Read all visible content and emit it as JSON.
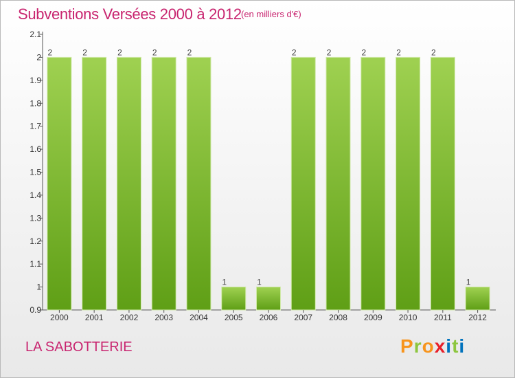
{
  "title": "Subventions Versées 2000 à 2012",
  "subtitle": "(en milliers d'€)",
  "commune": "LA SABOTTERIE",
  "logo": {
    "letters": [
      "P",
      "r",
      "o",
      "x",
      "i",
      "t",
      "i"
    ],
    "colors": [
      "#f7941d",
      "#8dc63f",
      "#f7941d",
      "#e8202a",
      "#0072bc",
      "#8dc63f",
      "#0072bc"
    ]
  },
  "colors": {
    "bar_top": "#9fd151",
    "bar_bottom": "#5f9f16",
    "accent": "#c8246f"
  },
  "chart_data": {
    "type": "bar",
    "title": "Subventions Versées 2000 à 2012",
    "categories": [
      "2000",
      "2001",
      "2002",
      "2003",
      "2004",
      "2005",
      "2006",
      "2007",
      "2008",
      "2009",
      "2010",
      "2011",
      "2012"
    ],
    "values": [
      2,
      2,
      2,
      2,
      2,
      1,
      1,
      2,
      2,
      2,
      2,
      2,
      1
    ],
    "data_labels": [
      "2",
      "2",
      "2",
      "2",
      "2",
      "1",
      "1",
      "2",
      "2",
      "2",
      "2",
      "2",
      "1"
    ],
    "ylim": [
      0.9,
      2.1
    ],
    "yticks": [
      0.9,
      1,
      1.1,
      1.2,
      1.3,
      1.4,
      1.5,
      1.6,
      1.7,
      1.8,
      1.9,
      2,
      2.1
    ],
    "ytick_labels": [
      "0.9",
      "1",
      "1.1",
      "1.2",
      "1.3",
      "1.4",
      "1.5",
      "1.6",
      "1.7",
      "1.8",
      "1.9",
      "2",
      "2.1"
    ],
    "grid": false,
    "legend": "none"
  }
}
